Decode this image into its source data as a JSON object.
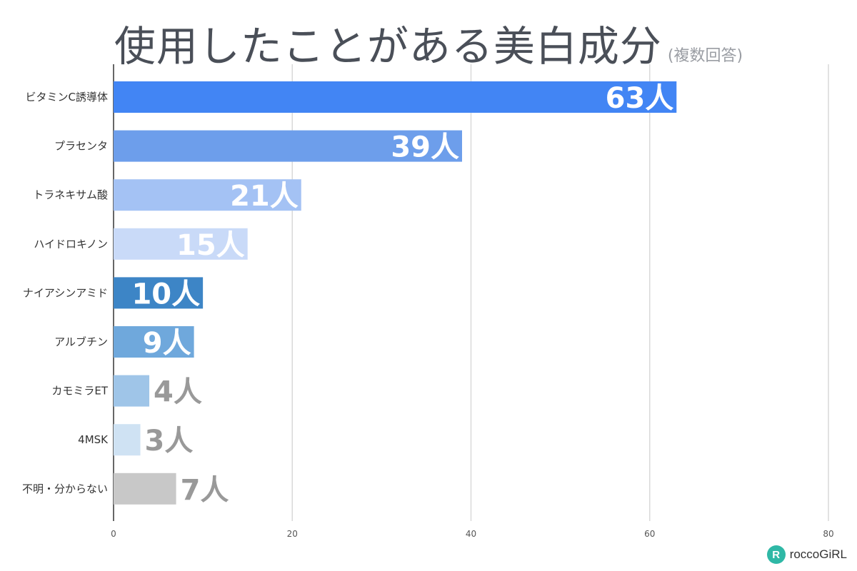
{
  "chart_data": {
    "type": "bar",
    "orientation": "horizontal",
    "title": "使用したことがある美白成分",
    "subtitle": "(複数回答)",
    "categories": [
      "ビタミンC誘導体",
      "プラセンタ",
      "トラネキサム酸",
      "ハイドロキノン",
      "ナイアシンアミド",
      "アルブチン",
      "カモミラET",
      "4MSK",
      "不明・分からない"
    ],
    "values": [
      63,
      39,
      21,
      15,
      10,
      9,
      4,
      3,
      7
    ],
    "data_labels": [
      "63人",
      "39人",
      "21人",
      "15人",
      "10人",
      "9人",
      "4人",
      "3人",
      "7人"
    ],
    "colors": [
      "#4285f4",
      "#6d9eeb",
      "#a4c2f4",
      "#c9daf8",
      "#3d85c6",
      "#6fa8dc",
      "#9fc5e8",
      "#cfe2f3",
      "#c8c8c8"
    ],
    "label_colors": [
      "#ffffff",
      "#ffffff",
      "#ffffff",
      "#ffffff",
      "#ffffff",
      "#ffffff",
      "#999999",
      "#999999",
      "#999999"
    ],
    "xlim": [
      0,
      80
    ],
    "xticks": [
      0,
      20,
      40,
      60,
      80
    ],
    "grid": true,
    "xlabel": "",
    "ylabel": ""
  },
  "logo": {
    "text": "roccoGiRL",
    "mark": "R"
  }
}
